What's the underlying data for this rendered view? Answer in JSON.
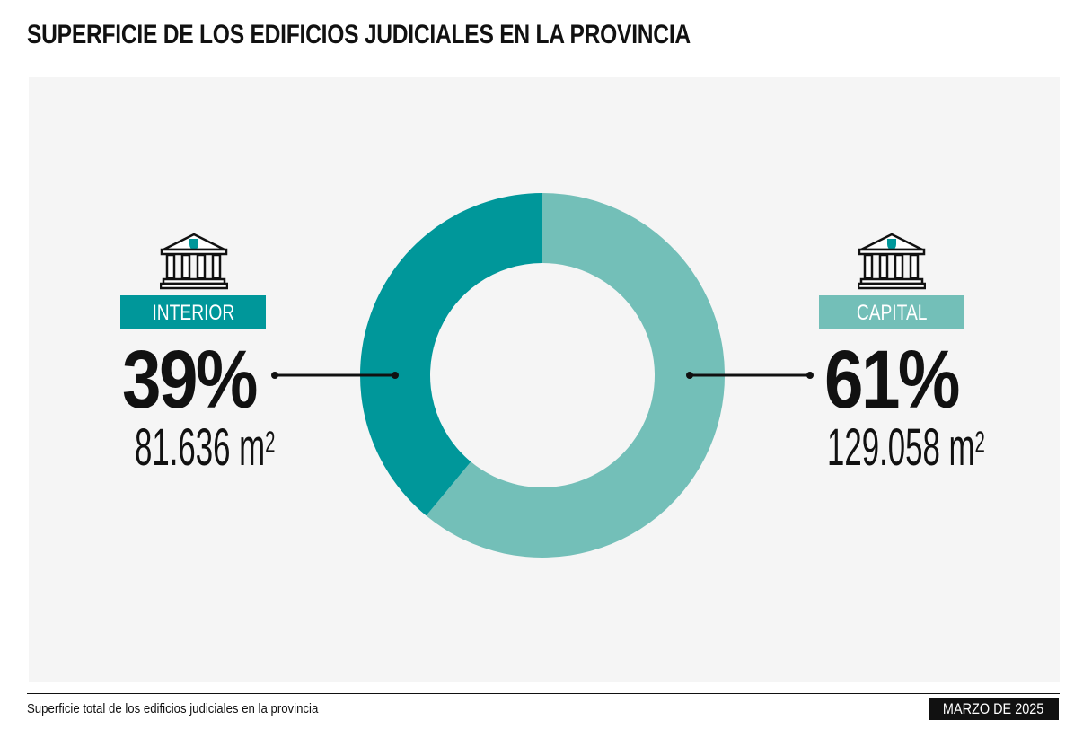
{
  "title": "SUPERFICIE DE LOS EDIFICIOS JUDICIALES EN LA PROVINCIA",
  "footer": {
    "source_note": "Superficie total de los edificios judiciales en la provincia",
    "date": "MARZO DE 2025"
  },
  "colors": {
    "interior": "#00979a",
    "capital": "#73bfb8",
    "background": "#f5f5f5"
  },
  "chart_data": {
    "type": "pie",
    "donut": true,
    "title": "",
    "slices": [
      {
        "name": "CAPITAL",
        "percent": 61,
        "percent_label": "61%",
        "value": 129058,
        "value_label": "129.058",
        "unit": "m",
        "unit_exp": "2",
        "color": "#73bfb8",
        "icon": "courthouse-icon"
      },
      {
        "name": "INTERIOR",
        "percent": 39,
        "percent_label": "39%",
        "value": 81636,
        "value_label": "81.636",
        "unit": "m",
        "unit_exp": "2",
        "color": "#00979a",
        "icon": "courthouse-icon"
      }
    ]
  }
}
